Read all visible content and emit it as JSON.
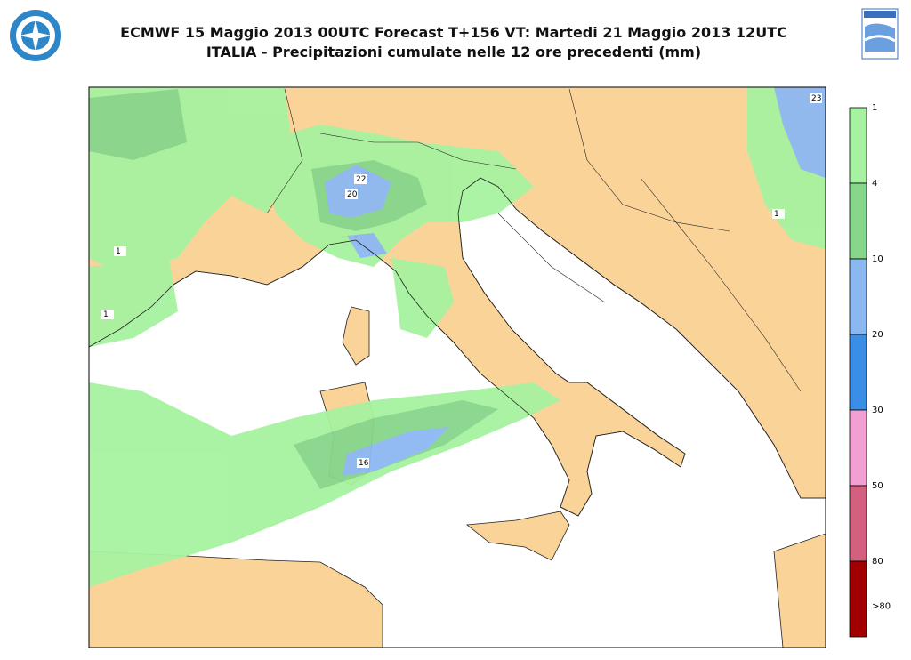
{
  "header": {
    "title": "ECMWF 15 Maggio 2013 00UTC Forecast T+156 VT: Martedi 21 Maggio 2013 12UTC",
    "subtitle": "ITALIA - Precipitazioni cumulate nelle 12 ore precedenti (mm)"
  },
  "legend": {
    "labels": [
      "1",
      "4",
      "10",
      "20",
      "30",
      "50",
      "80",
      ">80"
    ],
    "colors": [
      "#a6f2a0",
      "#86d68c",
      "#8cb8f2",
      "#3a8ee6",
      "#f2a0d2",
      "#d2607e",
      "#a00000"
    ]
  },
  "map": {
    "labels": [
      "23",
      "20",
      "22",
      "16",
      "1",
      "1",
      "1"
    ]
  }
}
